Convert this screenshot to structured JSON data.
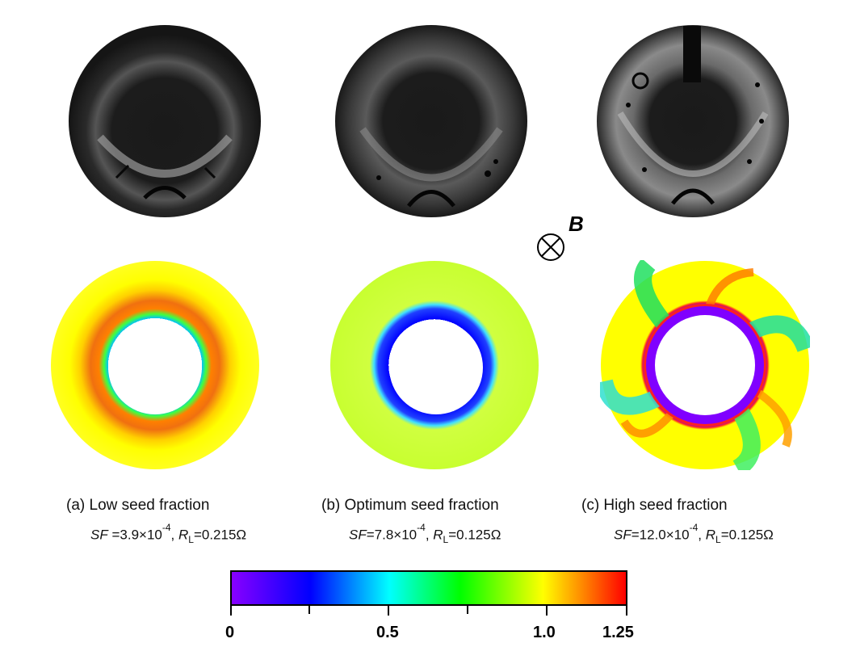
{
  "figure": {
    "panels": [
      {
        "caption": "(a) Low seed fraction",
        "sf_prefix": "SF",
        "sf_value": " =3.9×10",
        "sf_exp": "-4",
        "rl_sub": "L",
        "rl_value": "=0.215Ω"
      },
      {
        "caption": "(b) Optimum seed fraction",
        "sf_prefix": "SF",
        "sf_value": "=7.8×10",
        "sf_exp": "-4",
        "rl_sub": "L",
        "rl_value": "=0.125Ω"
      },
      {
        "caption": "(c) High seed fraction",
        "sf_prefix": "SF",
        "sf_value": "=12.0×10",
        "sf_exp": "-4",
        "rl_sub": "L",
        "rl_value": "=0.125Ω"
      }
    ],
    "field_label": "B",
    "colorbar": {
      "labels": [
        "0",
        "0.5",
        "1.0",
        "1.25"
      ],
      "colors": [
        "#8800ff",
        "#0000ff",
        "#00ffff",
        "#00ff00",
        "#ffff00",
        "#ff8800",
        "#ff0000"
      ]
    }
  }
}
